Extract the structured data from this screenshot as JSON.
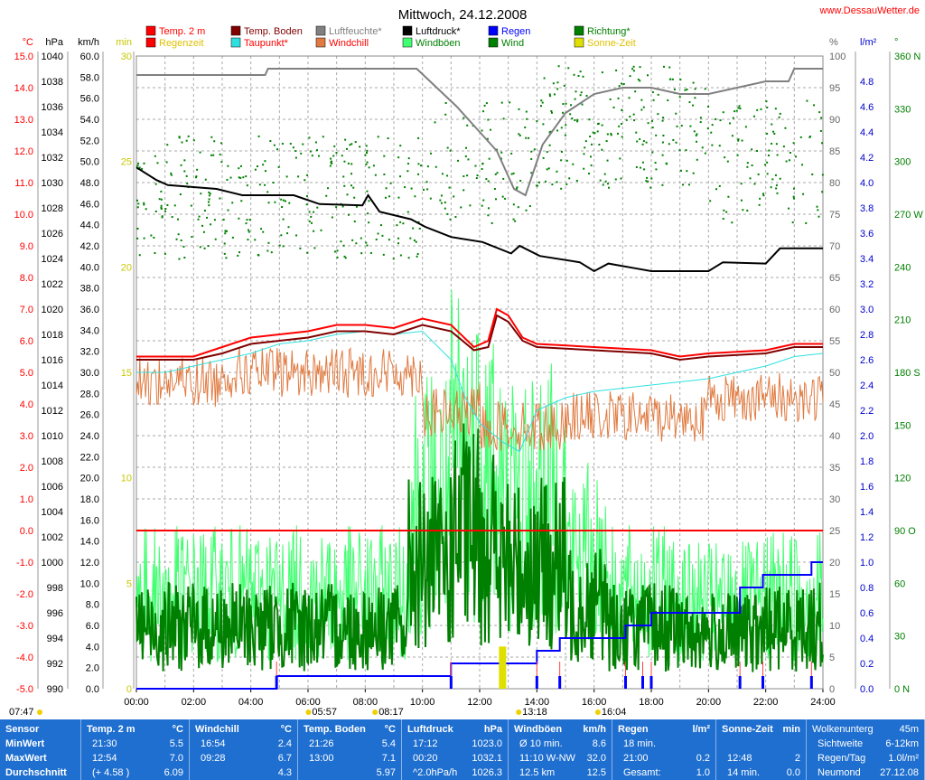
{
  "page": {
    "title": "Mittwoch, 24.12.2008",
    "site": "www.DessauWetter.de"
  },
  "colors": {
    "temp": "#ff0000",
    "boden": "#800000",
    "feuchte": "#808080",
    "druck": "#000000",
    "taupunkt": "#30e0e0",
    "windchill": "#e07a40",
    "wind": "#008000",
    "boeen": "#40ff70",
    "regen": "#0000ff",
    "richtung": "#008000",
    "sonne": "#e0e000"
  },
  "legend": [
    {
      "label": "Temp. 2 m",
      "color": "#ff0000",
      "text_color": "#ff0000"
    },
    {
      "label": "Regenzeit",
      "color": "#ff0000",
      "text_color": "#e0c000"
    },
    {
      "label": "Temp. Boden",
      "color": "#800000",
      "text_color": "#800000"
    },
    {
      "label": "Taupunkt*",
      "color": "#30e0e0",
      "text_color": "#ff0000"
    },
    {
      "label": "Luftfeuchte*",
      "color": "#808080",
      "text_color": "#808080"
    },
    {
      "label": "Windchill",
      "color": "#e07a40",
      "text_color": "#ff0000"
    },
    {
      "label": "Luftdruck*",
      "color": "#000000",
      "text_color": "#000000"
    },
    {
      "label": "Windböen",
      "color": "#40ff70",
      "text_color": "#008000"
    },
    {
      "label": "Regen",
      "color": "#0000ff",
      "text_color": "#0000ff"
    },
    {
      "label": "Wind",
      "color": "#008000",
      "text_color": "#008000"
    },
    {
      "label": "Richtung*",
      "color": "#008000",
      "text_color": "#008000"
    },
    {
      "label": "Sonne-Zeit",
      "color": "#e0e000",
      "text_color": "#e0c000"
    }
  ],
  "chart_data": {
    "type": "line",
    "title": "Mittwoch, 24.12.2008",
    "x_ticks": [
      "00:00",
      "02:00",
      "04:00",
      "06:00",
      "08:00",
      "10:00",
      "12:00",
      "14:00",
      "16:00",
      "18:00",
      "20:00",
      "22:00",
      "24:00"
    ],
    "axes": {
      "temp": {
        "unit": "°C",
        "range": [
          -5,
          15
        ],
        "ticks": [
          "15.0",
          "14.0",
          "13.0",
          "12.0",
          "11.0",
          "10.0",
          "9.0",
          "8.0",
          "7.0",
          "6.0",
          "5.0",
          "4.0",
          "3.0",
          "2.0",
          "1.0",
          "0.0",
          "-1.0",
          "-2.0",
          "-3.0",
          "-4.0",
          "-5.0"
        ]
      },
      "pressure": {
        "unit": "hPa",
        "range": [
          990,
          1040
        ],
        "ticks": [
          "1040",
          "1038",
          "1036",
          "1034",
          "1032",
          "1030",
          "1028",
          "1026",
          "1024",
          "1022",
          "1020",
          "1018",
          "1016",
          "1014",
          "1012",
          "1010",
          "1008",
          "1006",
          "1004",
          "1002",
          "1000",
          "998",
          "996",
          "994",
          "992",
          "990"
        ]
      },
      "wind": {
        "unit": "km/h",
        "range": [
          0,
          60
        ],
        "ticks": [
          "60.0",
          "58.0",
          "56.0",
          "54.0",
          "52.0",
          "50.0",
          "48.0",
          "46.0",
          "44.0",
          "42.0",
          "40.0",
          "38.0",
          "36.0",
          "34.0",
          "32.0",
          "30.0",
          "28.0",
          "26.0",
          "24.0",
          "22.0",
          "20.0",
          "18.0",
          "16.0",
          "14.0",
          "12.0",
          "10.0",
          "8.0",
          "6.0",
          "4.0",
          "2.0",
          "0.0"
        ]
      },
      "sunmin": {
        "unit": "min",
        "range": [
          0,
          30
        ],
        "ticks": [
          "30",
          "25",
          "20",
          "15",
          "10",
          "5",
          "0"
        ]
      },
      "humidity": {
        "unit": "%",
        "range": [
          0,
          100
        ],
        "ticks": [
          "100",
          "95",
          "90",
          "85",
          "80",
          "75",
          "70",
          "65",
          "60",
          "55",
          "50",
          "45",
          "40",
          "35",
          "30",
          "25",
          "20",
          "15",
          "10",
          "5",
          "0"
        ]
      },
      "rain": {
        "unit": "l/m²",
        "range": [
          0,
          5
        ],
        "ticks": [
          "4.8",
          "4.6",
          "4.4",
          "4.2",
          "4.0",
          "3.8",
          "3.6",
          "3.4",
          "3.2",
          "3.0",
          "2.8",
          "2.6",
          "2.4",
          "2.2",
          "2.0",
          "1.8",
          "1.6",
          "1.4",
          "1.2",
          "1.0",
          "0.8",
          "0.6",
          "0.4",
          "0.2",
          "0.0"
        ]
      },
      "direction": {
        "unit": "°",
        "range": [
          0,
          360
        ],
        "ticks": [
          "360 N",
          "330",
          "300",
          "270 W",
          "240",
          "210",
          "180 S",
          "150",
          "120",
          "90 O",
          "60",
          "30",
          "0 N"
        ]
      }
    },
    "series": [
      {
        "name": "Luftfeuchte*",
        "axis": "humidity",
        "x": [
          0,
          4.5,
          4.6,
          9.8,
          10.5,
          11.2,
          12,
          12.6,
          13.2,
          13.6,
          14.2,
          15,
          16,
          17,
          18,
          19,
          20,
          21,
          22,
          22.8,
          23,
          24
        ],
        "y": [
          97,
          97,
          98,
          98,
          95,
          92,
          88,
          85,
          79,
          78,
          86,
          91,
          94,
          95,
          95,
          94,
          94,
          95,
          96,
          96,
          98,
          98
        ]
      },
      {
        "name": "Luftdruck*",
        "axis": "pressure",
        "x": [
          0,
          0.7,
          1.1,
          2.8,
          3.7,
          5.5,
          6.4,
          7.9,
          8.1,
          8.5,
          9.6,
          10.1,
          11,
          12.1,
          13.1,
          13.4,
          14.1,
          15.5,
          16,
          16.5,
          17.5,
          18,
          20,
          20.5,
          22,
          22.5,
          24
        ],
        "y": [
          1031.2,
          1030.2,
          1029.8,
          1029.5,
          1029,
          1029,
          1028.3,
          1028.2,
          1029,
          1027.7,
          1027.1,
          1026.5,
          1025.7,
          1025.3,
          1024.4,
          1025,
          1024.2,
          1023.7,
          1023,
          1023.6,
          1023.2,
          1023,
          1023,
          1023.7,
          1023.6,
          1024.8,
          1024.8
        ]
      },
      {
        "name": "Temp. 2 m",
        "axis": "temp",
        "x": [
          0,
          2,
          3,
          4,
          5,
          6,
          7,
          8,
          9,
          10,
          11,
          11.8,
          12.3,
          12.6,
          13,
          13.5,
          14,
          16,
          18,
          19,
          20,
          22,
          23,
          24
        ],
        "y": [
          5.5,
          5.5,
          5.8,
          6.1,
          6.2,
          6.3,
          6.5,
          6.5,
          6.4,
          6.7,
          6.5,
          5.8,
          6.0,
          7.0,
          6.8,
          6.1,
          5.9,
          5.8,
          5.7,
          5.5,
          5.6,
          5.7,
          5.9,
          5.9
        ]
      },
      {
        "name": "Temp. Boden",
        "axis": "temp",
        "x": [
          0,
          2,
          3,
          4,
          5,
          6,
          7,
          8,
          9,
          10,
          11,
          11.8,
          12.3,
          12.6,
          13,
          13.5,
          14,
          16,
          18,
          19,
          20,
          22,
          23,
          24
        ],
        "y": [
          5.4,
          5.4,
          5.6,
          5.9,
          6.0,
          6.1,
          6.3,
          6.3,
          6.2,
          6.5,
          6.3,
          5.7,
          5.8,
          6.8,
          6.6,
          6.0,
          5.8,
          5.7,
          5.6,
          5.4,
          5.5,
          5.6,
          5.8,
          5.8
        ]
      },
      {
        "name": "Taupunkt*",
        "axis": "temp",
        "x": [
          0,
          1,
          2,
          3,
          4,
          5,
          6,
          7,
          8,
          9,
          10,
          11,
          11.5,
          12,
          12.8,
          13.4,
          14,
          15,
          16,
          18,
          20,
          21,
          22,
          23,
          24
        ],
        "y": [
          5.0,
          5.0,
          5.2,
          5.4,
          5.6,
          5.9,
          6.0,
          6.2,
          6.3,
          6.2,
          6.3,
          5.4,
          4.2,
          3.4,
          2.8,
          2.5,
          3.8,
          4.2,
          4.4,
          4.6,
          4.8,
          5.0,
          5.2,
          5.5,
          5.6
        ]
      },
      {
        "name": "Regen",
        "axis": "rain",
        "x": [
          0,
          4.9,
          4.9,
          11,
          11,
          14,
          14,
          14.8,
          14.8,
          17.1,
          17.1,
          18,
          18,
          21.1,
          21.1,
          21.9,
          21.9,
          23.6,
          23.6,
          24
        ],
        "y": [
          0,
          0,
          0.1,
          0.1,
          0.2,
          0.2,
          0.3,
          0.3,
          0.4,
          0.4,
          0.5,
          0.5,
          0.6,
          0.6,
          0.8,
          0.8,
          0.9,
          0.9,
          1.0,
          1.0
        ]
      },
      {
        "name": "Sonne-Zeit",
        "axis": "sunmin",
        "x": [
          12.8
        ],
        "y": [
          2
        ]
      }
    ],
    "markers": {
      "sunrise": "07:47",
      "sunset": "16:04",
      "moonrise": "05:57",
      "moon_mid": "08:17",
      "sun_mid": "13:18"
    },
    "reference_lines": [
      {
        "axis": "temp",
        "value": 0
      }
    ]
  },
  "stats": [
    {
      "header": "Sensor",
      "unit": "",
      "rows": [
        [
          "MinWert",
          ""
        ],
        [
          "MaxWert",
          ""
        ],
        [
          "Durchschnitt",
          ""
        ]
      ]
    },
    {
      "header": "Temp. 2 m",
      "unit": "°C",
      "rows": [
        [
          "21:30",
          "5.5"
        ],
        [
          "12:54",
          "7.0"
        ],
        [
          "(+ 4.58 )",
          "6.09"
        ]
      ]
    },
    {
      "header": "Windchill",
      "unit": "°C",
      "rows": [
        [
          "16:54",
          "2.4"
        ],
        [
          "09:28",
          "6.7"
        ],
        [
          "",
          "4.3"
        ]
      ]
    },
    {
      "header": "Temp. Boden",
      "unit": "°C",
      "rows": [
        [
          "21:26",
          "5.4"
        ],
        [
          "13:00",
          "7.1"
        ],
        [
          "",
          "5.97"
        ]
      ]
    },
    {
      "header": "Luftdruck",
      "unit": "hPa",
      "rows": [
        [
          "17:12",
          "1023.0"
        ],
        [
          "00:20",
          "1032.1"
        ],
        [
          "^2.0hPa/h",
          "1026.3"
        ]
      ]
    },
    {
      "header": "Windböen",
      "unit": "km/h",
      "rows": [
        [
          "Ø 10 min.",
          "8.6"
        ],
        [
          "11:10   W-NW",
          "32.0"
        ],
        [
          "12.5 km",
          "12.5"
        ]
      ]
    },
    {
      "header": "Regen",
      "unit": "l/m²",
      "rows": [
        [
          "18 min.",
          ""
        ],
        [
          "21:00",
          "0.2"
        ],
        [
          "Gesamt:",
          "1.0"
        ]
      ]
    },
    {
      "header": "Sonne-Zeit",
      "unit": "min",
      "rows": [
        [
          "",
          ""
        ],
        [
          "12:48",
          "2"
        ],
        [
          "14 min.",
          "0.0"
        ]
      ]
    },
    {
      "header": "Wolkenunterg",
      "unit": "45m",
      "rows": [
        [
          "Sichtweite",
          "6-12km"
        ],
        [
          "Regen/Tag",
          "1.0l/m²"
        ],
        [
          "Neumond",
          "27.12.08"
        ]
      ]
    }
  ]
}
